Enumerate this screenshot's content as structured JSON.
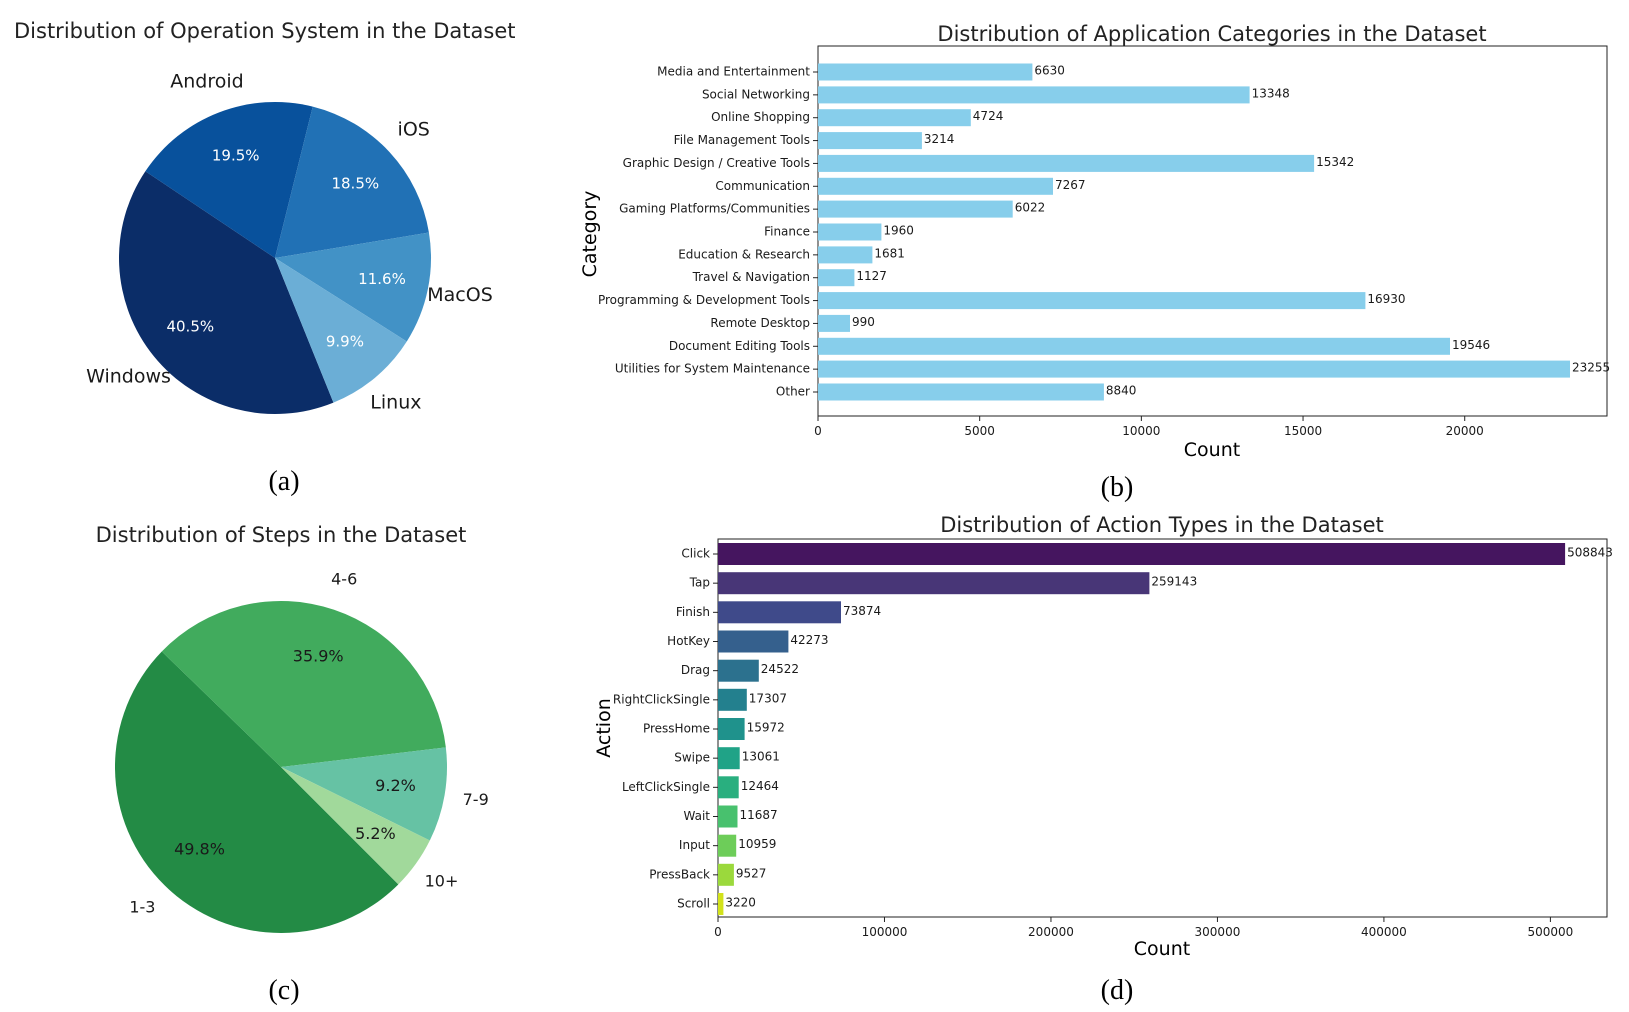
{
  "chart_data": [
    {
      "type": "pie",
      "panel": "(a)",
      "title": "Distribution of Operation System in the Dataset",
      "labels": [
        "Windows",
        "Android",
        "iOS",
        "MacOS",
        "Linux"
      ],
      "values": [
        40.5,
        19.5,
        18.5,
        11.6,
        9.9
      ],
      "pct_labels": [
        "40.5%",
        "19.5%",
        "18.5%",
        "11.6%",
        "9.9%"
      ],
      "colors": [
        "#0b2d68",
        "#08519c",
        "#2171b5",
        "#4292c6",
        "#6baed6"
      ],
      "pct_colors": [
        "#ffffff",
        "#ffffff",
        "#ffffff",
        "#ffffff",
        "#ffffff"
      ]
    },
    {
      "type": "bar",
      "orientation": "horizontal",
      "panel": "(b)",
      "title": "Distribution of Application Categories in the Dataset",
      "xlabel": "Count",
      "ylabel": "Category",
      "categories": [
        "Media and Entertainment",
        "Social Networking",
        "Online Shopping",
        "File Management Tools",
        "Graphic Design / Creative Tools",
        "Communication",
        "Gaming Platforms/Communities",
        "Finance",
        "Education & Research",
        "Travel & Navigation",
        "Programming & Development Tools",
        "Remote Desktop",
        "Document Editing Tools",
        "Utilities for System Maintenance",
        "Other"
      ],
      "values": [
        6630,
        13348,
        4724,
        3214,
        15342,
        7267,
        6022,
        1960,
        1681,
        1127,
        16930,
        990,
        19546,
        23255,
        8840
      ],
      "value_labels": [
        "6630",
        "13348",
        "4724",
        "3214",
        "15342",
        "7267",
        "6022",
        "1960",
        "1681",
        "1127",
        "16930",
        "990",
        "19546",
        "23255",
        "8840"
      ],
      "xlim": [
        0,
        24400
      ],
      "xticks": [
        0,
        5000,
        10000,
        15000,
        20000
      ],
      "xtick_labels": [
        "0",
        "5000",
        "10000",
        "15000",
        "20000"
      ],
      "color": "#87ceeb"
    },
    {
      "type": "pie",
      "panel": "(c)",
      "title": "Distribution of Steps in the Dataset",
      "labels": [
        "1-3",
        "4-6",
        "7-9",
        "10+"
      ],
      "values": [
        49.8,
        35.9,
        9.2,
        5.2
      ],
      "pct_labels": [
        "49.8%",
        "35.9%",
        "9.2%",
        "5.2%"
      ],
      "colors": [
        "#238b45",
        "#41ab5d",
        "#66c2a4",
        "#a1d99b"
      ],
      "pct_colors": [
        "#1a1a1a",
        "#1a1a1a",
        "#1a1a1a",
        "#1a1a1a"
      ]
    },
    {
      "type": "bar",
      "orientation": "horizontal",
      "panel": "(d)",
      "title": "Distribution of Action Types in the Dataset",
      "xlabel": "Count",
      "ylabel": "Action",
      "categories": [
        "Click",
        "Tap",
        "Finish",
        "HotKey",
        "Drag",
        "RightClickSingle",
        "PressHome",
        "Swipe",
        "LeftClickSingle",
        "Wait",
        "Input",
        "PressBack",
        "Scroll"
      ],
      "values": [
        508843,
        259143,
        73874,
        42273,
        24522,
        17307,
        15972,
        13061,
        12464,
        11687,
        10959,
        9527,
        3220
      ],
      "value_labels": [
        "508843",
        "259143",
        "73874",
        "42273",
        "24522",
        "17307",
        "15972",
        "13061",
        "12464",
        "11687",
        "10959",
        "9527",
        "3220"
      ],
      "xlim": [
        0,
        534000
      ],
      "xticks": [
        0,
        100000,
        200000,
        300000,
        400000,
        500000
      ],
      "xtick_labels": [
        "0",
        "100000",
        "200000",
        "300000",
        "400000",
        "500000"
      ],
      "colors": [
        "#45155f",
        "#483677",
        "#3f4a8a",
        "#35608d",
        "#2c718e",
        "#23808e",
        "#1f928c",
        "#20a387",
        "#29af7f",
        "#48c16e",
        "#6dcd59",
        "#9bd93c",
        "#d2e21b"
      ]
    }
  ]
}
